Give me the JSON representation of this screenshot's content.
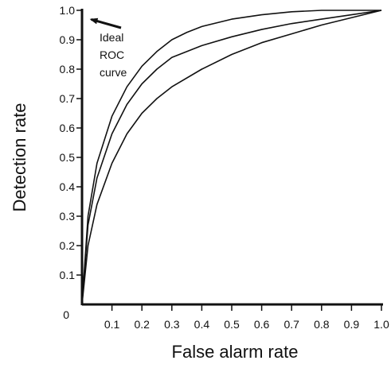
{
  "chart_data": {
    "type": "line",
    "title": "",
    "xlabel": "False alarm rate",
    "ylabel": "Detection rate",
    "xlim": [
      0,
      1
    ],
    "ylim": [
      0,
      1
    ],
    "x_ticks": [
      "0.1",
      "0.2",
      "0.3",
      "0.4",
      "0.5",
      "0.6",
      "0.7",
      "0.8",
      "0.9",
      "1.0"
    ],
    "y_ticks": [
      "0",
      "0.1",
      "0.2",
      "0.3",
      "0.4",
      "0.5",
      "0.6",
      "0.7",
      "0.8",
      "0.9",
      "1.0"
    ],
    "grid": false,
    "legend": "none",
    "series": [
      {
        "points": [
          [
            0,
            0
          ],
          [
            0.02,
            0.3
          ],
          [
            0.05,
            0.48
          ],
          [
            0.1,
            0.64
          ],
          [
            0.15,
            0.74
          ],
          [
            0.2,
            0.81
          ],
          [
            0.25,
            0.86
          ],
          [
            0.3,
            0.9
          ],
          [
            0.35,
            0.925
          ],
          [
            0.4,
            0.945
          ],
          [
            0.5,
            0.97
          ],
          [
            0.6,
            0.985
          ],
          [
            0.7,
            0.995
          ],
          [
            0.8,
            1.0
          ],
          [
            1.0,
            1.0
          ]
        ]
      },
      {
        "points": [
          [
            0,
            0
          ],
          [
            0.02,
            0.27
          ],
          [
            0.05,
            0.43
          ],
          [
            0.1,
            0.58
          ],
          [
            0.15,
            0.68
          ],
          [
            0.2,
            0.75
          ],
          [
            0.25,
            0.8
          ],
          [
            0.3,
            0.84
          ],
          [
            0.4,
            0.88
          ],
          [
            0.5,
            0.91
          ],
          [
            0.6,
            0.935
          ],
          [
            0.7,
            0.955
          ],
          [
            0.8,
            0.97
          ],
          [
            0.9,
            0.985
          ],
          [
            1.0,
            1.0
          ]
        ]
      },
      {
        "points": [
          [
            0,
            0
          ],
          [
            0.02,
            0.2
          ],
          [
            0.05,
            0.34
          ],
          [
            0.1,
            0.48
          ],
          [
            0.15,
            0.58
          ],
          [
            0.2,
            0.65
          ],
          [
            0.25,
            0.7
          ],
          [
            0.3,
            0.74
          ],
          [
            0.4,
            0.8
          ],
          [
            0.5,
            0.85
          ],
          [
            0.6,
            0.89
          ],
          [
            0.7,
            0.92
          ],
          [
            0.8,
            0.95
          ],
          [
            0.9,
            0.975
          ],
          [
            1.0,
            1.0
          ]
        ]
      }
    ],
    "annotations": [
      {
        "lines": [
          "Ideal",
          "ROC",
          "curve"
        ],
        "arrow_target": [
          0.02,
          0.98
        ]
      }
    ],
    "colors": {
      "line": "#111111",
      "axis": "#111111",
      "background": "#ffffff"
    }
  }
}
